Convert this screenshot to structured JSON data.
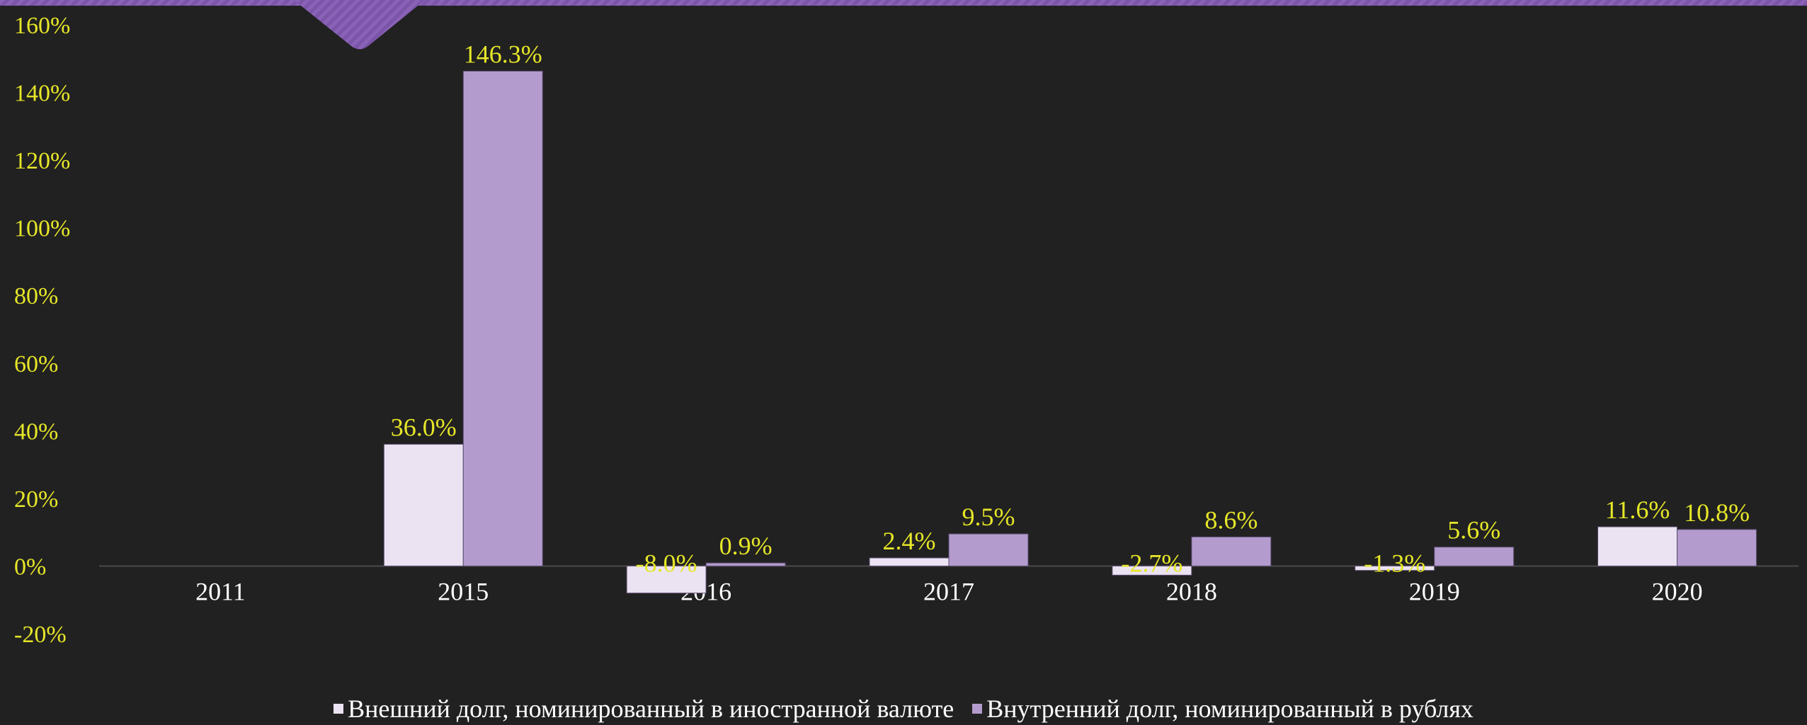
{
  "chart_data": {
    "type": "bar",
    "categories": [
      "2011",
      "2015",
      "2016",
      "2017",
      "2018",
      "2019",
      "2020"
    ],
    "series": [
      {
        "name": "Внешний долг, номинированный в иностранной валюте",
        "values": [
          null,
          36.0,
          -8.0,
          2.4,
          -2.7,
          -1.3,
          11.6
        ],
        "labels": [
          "",
          "36.0%",
          "-8.0%",
          "2.4%",
          "-2.7%",
          "-1.3%",
          "11.6%"
        ],
        "color": "#ebe3f2"
      },
      {
        "name": "Внутренний долг, номинированный в рублях",
        "values": [
          null,
          146.3,
          0.9,
          9.5,
          8.6,
          5.6,
          10.8
        ],
        "labels": [
          "",
          "146.3%",
          "0.9%",
          "9.5%",
          "8.6%",
          "5.6%",
          "10.8%"
        ],
        "color": "#b39ccd"
      }
    ],
    "ylim": [
      -20,
      160
    ],
    "yticks": [
      160,
      140,
      120,
      100,
      80,
      60,
      40,
      20,
      0,
      -20
    ],
    "ytick_labels": [
      "160%",
      "140%",
      "120%",
      "100%",
      "80%",
      "60%",
      "40%",
      "20%",
      "0%",
      "-20%"
    ],
    "title": "",
    "xlabel": "",
    "ylabel": "",
    "grid": false,
    "legend_position": "bottom",
    "colors": {
      "background": "#212121",
      "tick_text": "#e6e629",
      "category_text": "#ffffff",
      "axis_line": "#4a4a4a",
      "accent": "#8a62b8"
    }
  }
}
